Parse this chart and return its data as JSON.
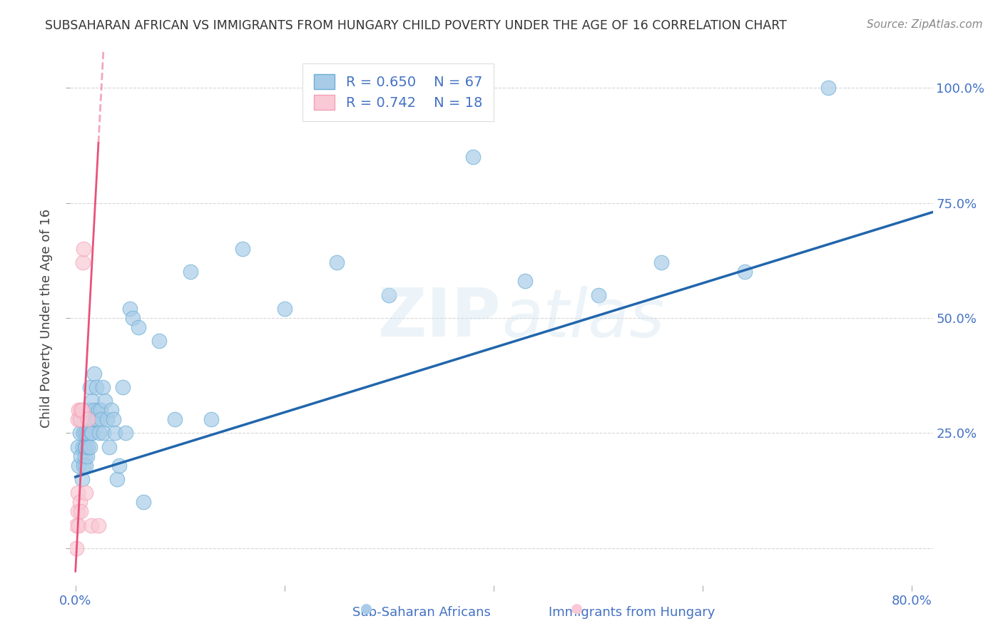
{
  "title": "SUBSAHARAN AFRICAN VS IMMIGRANTS FROM HUNGARY CHILD POVERTY UNDER THE AGE OF 16 CORRELATION CHART",
  "source": "Source: ZipAtlas.com",
  "xlabel_blue": "Sub-Saharan Africans",
  "xlabel_pink": "Immigrants from Hungary",
  "ylabel": "Child Poverty Under the Age of 16",
  "xlim": [
    -0.005,
    0.82
  ],
  "ylim": [
    -0.08,
    1.08
  ],
  "legend_blue_R": "R = 0.650",
  "legend_blue_N": "N = 67",
  "legend_pink_R": "R = 0.742",
  "legend_pink_N": "N = 18",
  "blue_color": "#A8CCE8",
  "blue_edge_color": "#6BAED6",
  "blue_line_color": "#2166AC",
  "pink_color": "#F9C9D5",
  "pink_edge_color": "#F4A0B5",
  "pink_line_color": "#E8527A",
  "watermark": "ZIPAtlas",
  "blue_scatter_x": [
    0.002,
    0.003,
    0.004,
    0.005,
    0.005,
    0.006,
    0.007,
    0.007,
    0.008,
    0.008,
    0.009,
    0.009,
    0.01,
    0.01,
    0.01,
    0.011,
    0.011,
    0.012,
    0.012,
    0.013,
    0.013,
    0.014,
    0.014,
    0.015,
    0.015,
    0.016,
    0.016,
    0.017,
    0.018,
    0.018,
    0.019,
    0.02,
    0.021,
    0.022,
    0.023,
    0.024,
    0.025,
    0.026,
    0.027,
    0.028,
    0.03,
    0.032,
    0.034,
    0.036,
    0.038,
    0.04,
    0.042,
    0.045,
    0.048,
    0.052,
    0.055,
    0.06,
    0.065,
    0.08,
    0.095,
    0.11,
    0.13,
    0.16,
    0.2,
    0.25,
    0.3,
    0.38,
    0.43,
    0.5,
    0.56,
    0.64,
    0.72
  ],
  "blue_scatter_y": [
    0.22,
    0.18,
    0.25,
    0.2,
    0.28,
    0.15,
    0.22,
    0.3,
    0.18,
    0.25,
    0.2,
    0.22,
    0.18,
    0.22,
    0.25,
    0.2,
    0.28,
    0.22,
    0.25,
    0.28,
    0.3,
    0.22,
    0.35,
    0.25,
    0.28,
    0.32,
    0.25,
    0.28,
    0.38,
    0.3,
    0.28,
    0.35,
    0.28,
    0.3,
    0.25,
    0.3,
    0.28,
    0.35,
    0.25,
    0.32,
    0.28,
    0.22,
    0.3,
    0.28,
    0.25,
    0.15,
    0.18,
    0.35,
    0.25,
    0.52,
    0.5,
    0.48,
    0.1,
    0.45,
    0.28,
    0.6,
    0.28,
    0.65,
    0.52,
    0.62,
    0.55,
    0.85,
    0.58,
    0.55,
    0.62,
    0.6,
    1.0
  ],
  "pink_scatter_x": [
    0.001,
    0.001,
    0.002,
    0.002,
    0.002,
    0.003,
    0.003,
    0.004,
    0.004,
    0.005,
    0.005,
    0.006,
    0.007,
    0.008,
    0.01,
    0.012,
    0.015,
    0.022
  ],
  "pink_scatter_y": [
    0.0,
    0.05,
    0.08,
    0.12,
    0.28,
    0.05,
    0.3,
    0.1,
    0.28,
    0.08,
    0.3,
    0.3,
    0.62,
    0.65,
    0.12,
    0.28,
    0.05,
    0.05
  ],
  "blue_trend_x0": 0.0,
  "blue_trend_x1": 0.82,
  "blue_trend_y0": 0.155,
  "blue_trend_y1": 0.73,
  "pink_trend_solid_x0": 0.0,
  "pink_trend_solid_x1": 0.022,
  "pink_trend_solid_y0": -0.05,
  "pink_trend_solid_y1": 0.88,
  "pink_trend_dashed_x0": 0.013,
  "pink_trend_dashed_x1": 0.022,
  "pink_trend_dashed_y0": 0.5,
  "pink_trend_dashed_y1": 0.88,
  "background_color": "#FFFFFF",
  "grid_color": "#CCCCCC"
}
